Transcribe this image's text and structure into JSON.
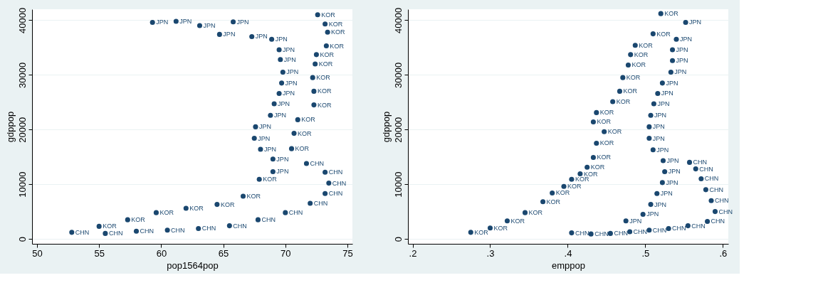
{
  "chart_data": [
    {
      "type": "scatter",
      "xlabel": "pop1564pop",
      "ylabel": "gdppop",
      "xlim": [
        49.6,
        75.4
      ],
      "xticks": [
        50,
        55,
        60,
        65,
        70,
        75
      ],
      "ylim": [
        -900,
        42000
      ],
      "yticks": [
        0,
        10000,
        20000,
        30000,
        40000
      ],
      "grid": "y",
      "legend": false,
      "marker": "circle",
      "series": [
        {
          "name": "KOR",
          "color": "#1a476f",
          "x": [
            55,
            57.3,
            59.6,
            62,
            64.5,
            66.6,
            67.9,
            70.5,
            70.7,
            71,
            72.3,
            72.3,
            72.2,
            72.4,
            72.5,
            73.3,
            73.4,
            73.2,
            72.6
          ],
          "values": [
            2300,
            3500,
            4800,
            5600,
            6300,
            7800,
            10900,
            16500,
            19300,
            21800,
            24500,
            27000,
            29500,
            32000,
            33700,
            35300,
            37800,
            39300,
            41000
          ]
        },
        {
          "name": "JPN",
          "color": "#1a476f",
          "x": [
            59.3,
            61.2,
            63.1,
            64.7,
            65.8,
            67.3,
            68.9,
            69.5,
            69.6,
            69.8,
            69.7,
            69.5,
            69.1,
            68.8,
            67.6,
            67.5,
            68,
            69,
            69
          ],
          "values": [
            39600,
            39800,
            39000,
            37400,
            39700,
            37000,
            36500,
            34600,
            32800,
            30500,
            28500,
            26600,
            24700,
            22600,
            20500,
            18400,
            16400,
            14600,
            12300
          ]
        },
        {
          "name": "CHN",
          "color": "#1a476f",
          "x": [
            52.8,
            55.5,
            58,
            60.5,
            63,
            65.5,
            67.8,
            70,
            72,
            73.2,
            73.5,
            73.2,
            71.7
          ],
          "values": [
            1200,
            1000,
            1400,
            1600,
            1900,
            2400,
            3500,
            4800,
            6500,
            8300,
            10200,
            12200,
            13800
          ]
        }
      ]
    },
    {
      "type": "scatter",
      "xlabel": "emppop",
      "ylabel": "gdppop",
      "xlim": [
        0.194,
        0.607
      ],
      "xticks": [
        {
          "value": 0.2,
          "label": ".2"
        },
        {
          "value": 0.3,
          "label": ".3"
        },
        {
          "value": 0.4,
          "label": ".4"
        },
        {
          "value": 0.5,
          "label": ".5"
        },
        {
          "value": 0.6,
          "label": ".6"
        }
      ],
      "ylim": [
        -900,
        42000
      ],
      "yticks": [
        0,
        10000,
        20000,
        30000,
        40000
      ],
      "grid": "y",
      "legend": false,
      "marker": "circle",
      "series": [
        {
          "name": "KOR",
          "color": "#1a476f",
          "x": [
            0.275,
            0.3,
            0.322,
            0.345,
            0.368,
            0.38,
            0.395,
            0.405,
            0.416,
            0.425,
            0.433,
            0.437,
            0.447,
            0.433,
            0.437,
            0.458,
            0.467,
            0.471,
            0.478,
            0.481,
            0.487,
            0.51,
            0.52
          ],
          "values": [
            1200,
            2000,
            3300,
            4800,
            6800,
            8400,
            9600,
            10900,
            11900,
            13100,
            14900,
            17500,
            19600,
            21400,
            23100,
            25100,
            27000,
            29500,
            31800,
            33700,
            35400,
            37500,
            41200
          ]
        },
        {
          "name": "JPN",
          "color": "#1a476f",
          "x": [
            0.552,
            0.54,
            0.535,
            0.535,
            0.533,
            0.522,
            0.516,
            0.511,
            0.507,
            0.505,
            0.505,
            0.51,
            0.523,
            0.525,
            0.522,
            0.515,
            0.507,
            0.497,
            0.475
          ],
          "values": [
            39600,
            36500,
            34600,
            32600,
            30500,
            28500,
            26600,
            24700,
            22600,
            20500,
            18400,
            16300,
            14300,
            12300,
            10300,
            8300,
            6300,
            4500,
            3300
          ]
        },
        {
          "name": "CHN",
          "color": "#1a476f",
          "x": [
            0.405,
            0.43,
            0.455,
            0.48,
            0.505,
            0.53,
            0.555,
            0.58,
            0.59,
            0.585,
            0.578,
            0.572,
            0.565,
            0.557
          ],
          "values": [
            1100,
            900,
            1000,
            1300,
            1600,
            1900,
            2400,
            3200,
            5000,
            7000,
            9000,
            11000,
            12800,
            14000
          ]
        }
      ]
    }
  ]
}
